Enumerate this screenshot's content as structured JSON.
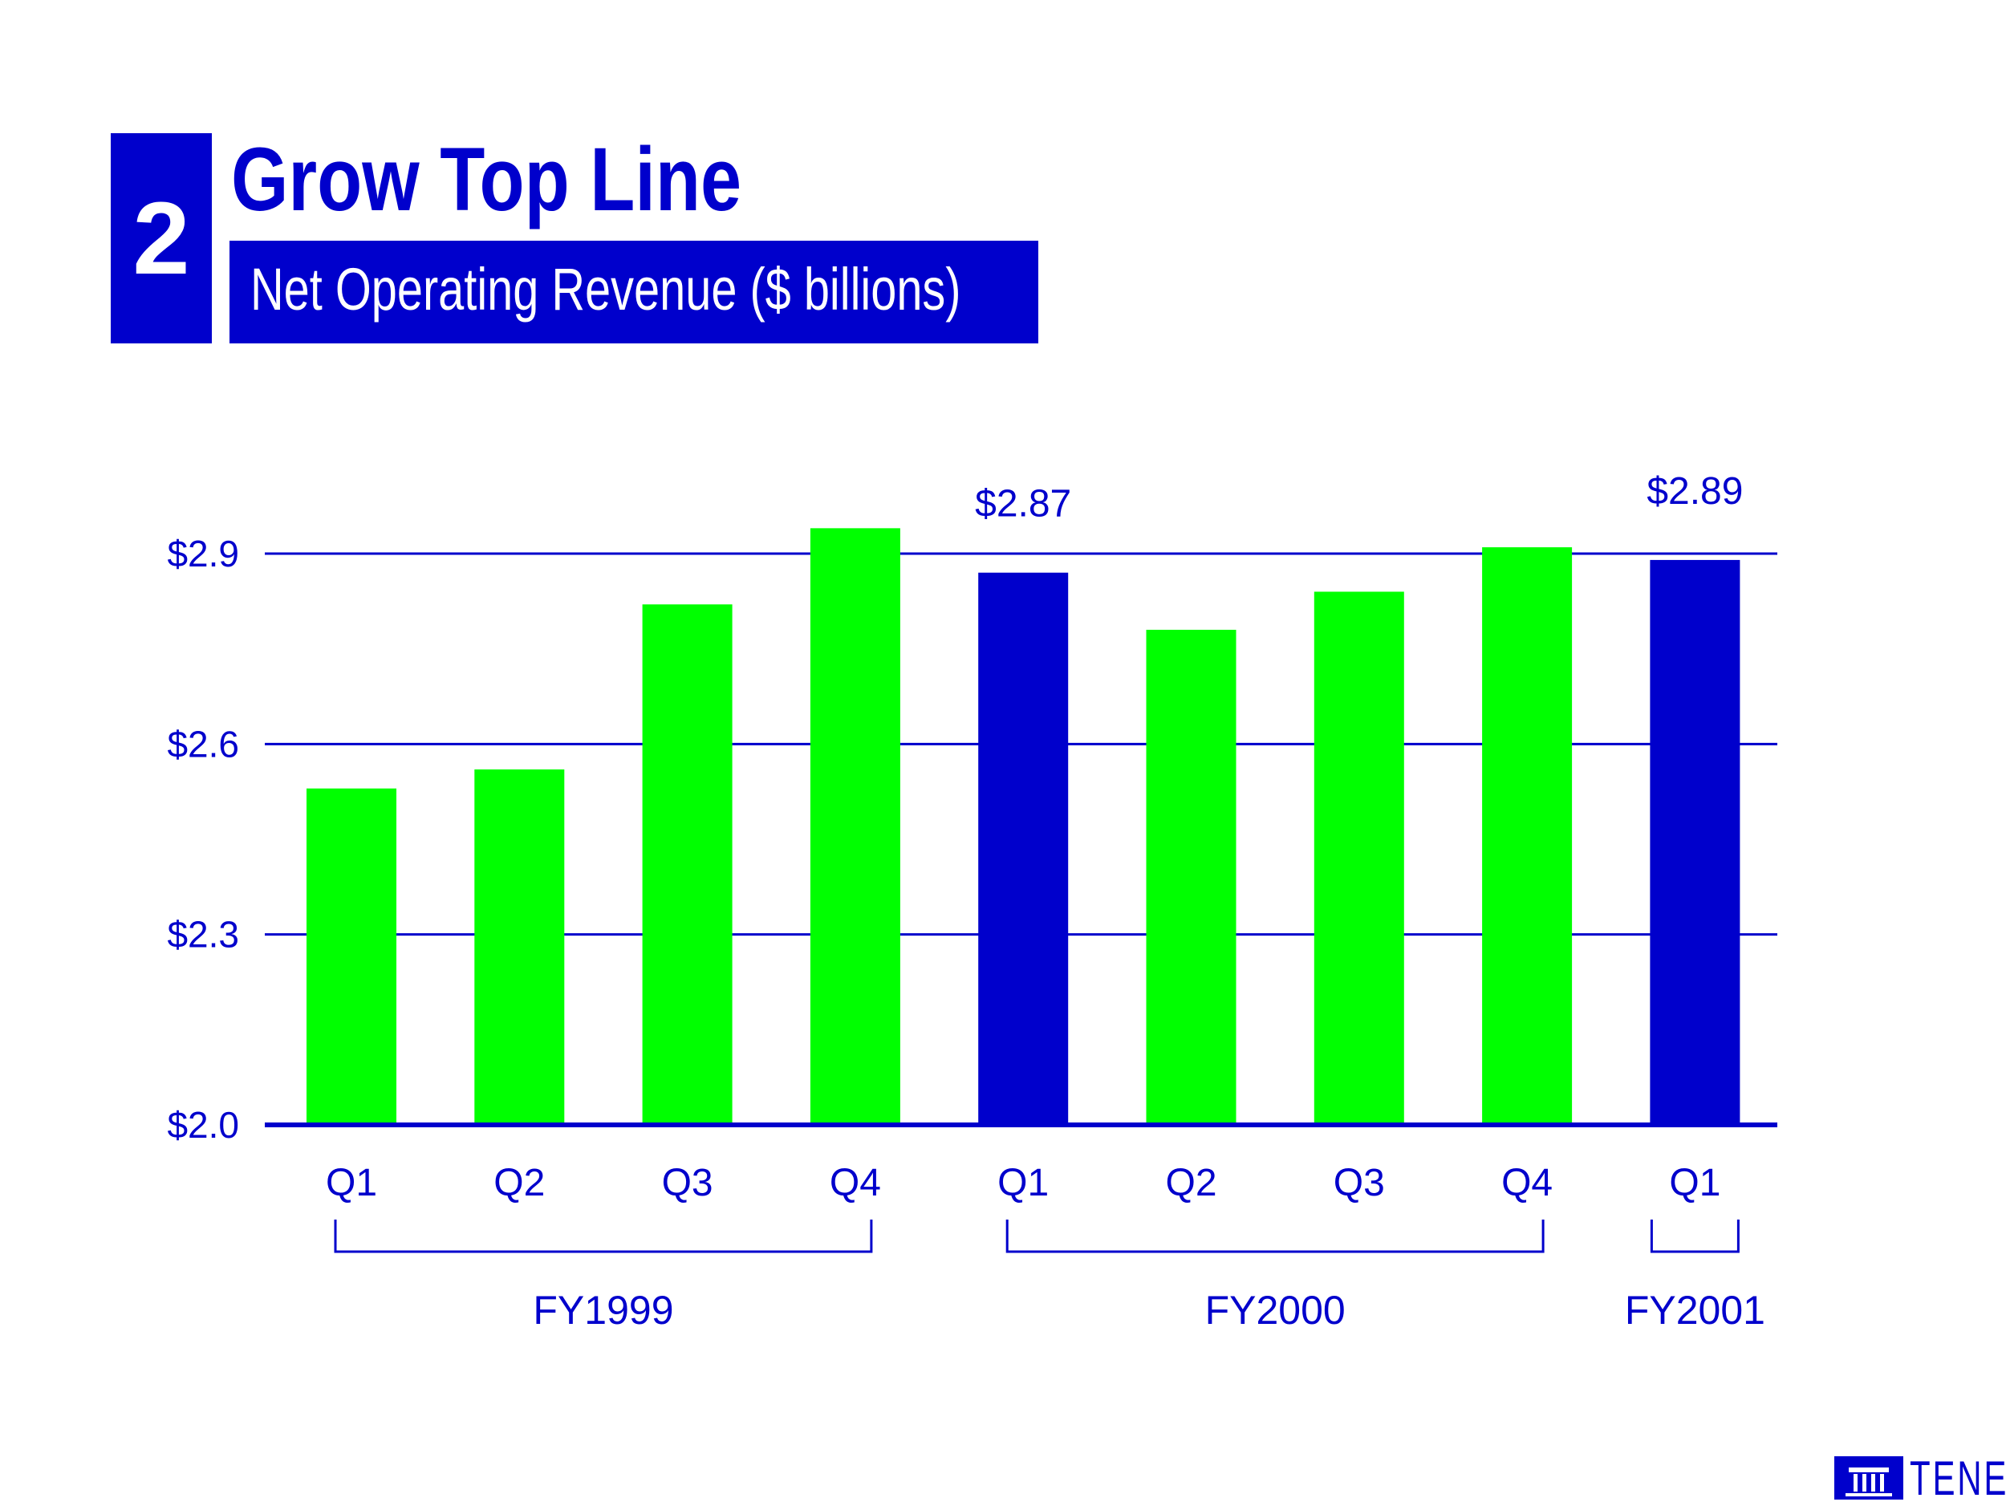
{
  "slide": {
    "number": "2",
    "title": "Grow Top Line",
    "subtitle": "Net Operating Revenue ($ billions)"
  },
  "logo": {
    "text": "TENET."
  },
  "colors": {
    "primary": "#0000cc",
    "green": "#00ff00",
    "background": "#ffffff"
  },
  "chart_data": {
    "type": "bar",
    "title": "Net Operating Revenue ($ billions)",
    "categories": [
      "Q1",
      "Q2",
      "Q3",
      "Q4",
      "Q1",
      "Q2",
      "Q3",
      "Q4",
      "Q1"
    ],
    "values": [
      2.53,
      2.56,
      2.82,
      2.94,
      2.87,
      2.78,
      2.84,
      2.91,
      2.89
    ],
    "highlight": [
      false,
      false,
      false,
      false,
      true,
      false,
      false,
      false,
      true
    ],
    "data_labels": [
      "",
      "",
      "",
      "",
      "$2.87",
      "",
      "",
      "",
      "$2.89"
    ],
    "y_ticks": [
      2.0,
      2.3,
      2.6,
      2.9
    ],
    "y_tick_labels": [
      "$2.0",
      "$2.3",
      "$2.6",
      "$2.9"
    ],
    "ylim": [
      2.0,
      2.95
    ],
    "grid": true,
    "groups": [
      {
        "label": "FY1999",
        "start": 0,
        "end": 3
      },
      {
        "label": "FY2000",
        "start": 4,
        "end": 7
      },
      {
        "label": "FY2001",
        "start": 8,
        "end": 8
      }
    ],
    "xlabel": "",
    "ylabel": ""
  }
}
